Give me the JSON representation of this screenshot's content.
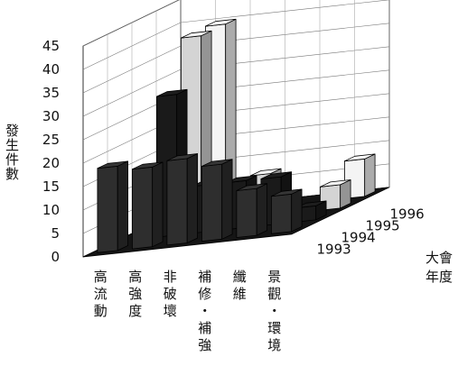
{
  "chart_data": {
    "type": "bar",
    "subtype": "3d-grouped",
    "title": "",
    "ylabel": "發生件數",
    "zlabel": "大會年度",
    "ylim": [
      0,
      45
    ],
    "yticks": [
      "0",
      "5",
      "10",
      "15",
      "20",
      "25",
      "30",
      "35",
      "40",
      "45"
    ],
    "categories": [
      "高流動",
      "高強度",
      "非破壞",
      "補修・補強",
      "纖維",
      "景觀・環境"
    ],
    "years": [
      "1993",
      "1994",
      "1995",
      "1996"
    ],
    "series": [
      {
        "name": "1993",
        "values": [
          18,
          17,
          18,
          16,
          10,
          8
        ]
      },
      {
        "name": "1994",
        "values": [
          0,
          30,
          10,
          10,
          10,
          3
        ]
      },
      {
        "name": "1995",
        "values": [
          0,
          40,
          0,
          9,
          0,
          5
        ]
      },
      {
        "name": "1996",
        "values": [
          0,
          40,
          0,
          0,
          0,
          8
        ]
      }
    ],
    "series_colors": [
      "#2e2e2e",
      "#1a1a1a",
      "#d4d4d4",
      "#f4f4f4"
    ],
    "grid": true
  }
}
